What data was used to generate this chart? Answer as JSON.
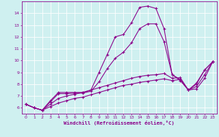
{
  "background_color": "#cff0f0",
  "grid_color": "#ffffff",
  "line_color": "#8b008b",
  "marker": "+",
  "marker_size": 3,
  "marker_linewidth": 0.8,
  "linewidth": 0.8,
  "xlabel": "Windchill (Refroidissement éolien,°C)",
  "xlim": [
    -0.5,
    23.5
  ],
  "ylim": [
    5.5,
    15.0
  ],
  "xticks": [
    0,
    1,
    2,
    3,
    4,
    5,
    6,
    7,
    8,
    9,
    10,
    11,
    12,
    13,
    14,
    15,
    16,
    17,
    18,
    19,
    20,
    21,
    22,
    23
  ],
  "yticks": [
    6,
    7,
    8,
    9,
    10,
    11,
    12,
    13,
    14
  ],
  "series": [
    [
      6.3,
      6.0,
      5.8,
      6.6,
      7.3,
      7.3,
      7.3,
      7.3,
      7.5,
      9.0,
      10.5,
      12.0,
      12.2,
      13.2,
      14.5,
      14.6,
      14.4,
      12.7,
      8.8,
      8.3,
      7.5,
      8.0,
      9.2,
      9.9
    ],
    [
      6.3,
      6.0,
      5.8,
      6.1,
      6.4,
      6.6,
      6.8,
      6.9,
      7.1,
      7.3,
      7.5,
      7.7,
      7.9,
      8.0,
      8.15,
      8.25,
      8.35,
      8.45,
      8.3,
      8.4,
      7.5,
      7.6,
      8.5,
      9.9
    ],
    [
      6.3,
      6.0,
      5.8,
      6.3,
      6.8,
      7.0,
      7.15,
      7.3,
      7.5,
      7.7,
      7.9,
      8.1,
      8.3,
      8.5,
      8.65,
      8.75,
      8.8,
      8.9,
      8.5,
      8.55,
      7.5,
      7.8,
      8.8,
      9.9
    ],
    [
      6.3,
      6.0,
      5.8,
      6.5,
      7.2,
      7.2,
      7.25,
      7.25,
      7.4,
      8.2,
      9.3,
      10.2,
      10.7,
      11.5,
      12.7,
      13.1,
      13.1,
      11.6,
      8.8,
      8.4,
      7.5,
      8.1,
      9.2,
      9.9
    ]
  ]
}
